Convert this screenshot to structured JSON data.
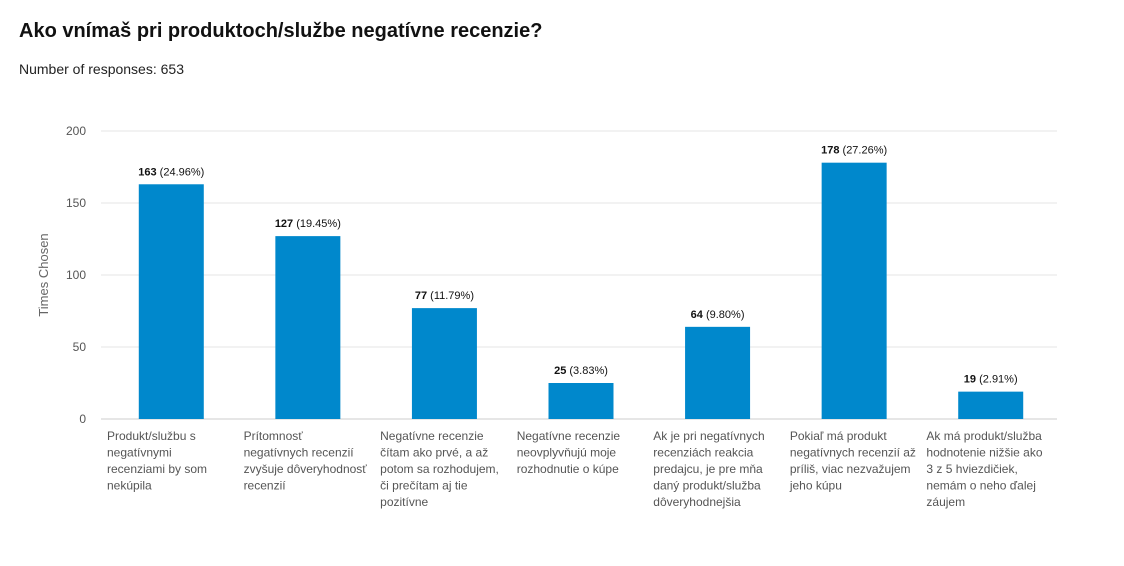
{
  "page": {
    "title": "Ako vnímaš pri produktoch/službe negatívne recenzie?",
    "subtitle": "Number of responses: 653"
  },
  "colors": {
    "bar": "#0088cc",
    "grid": "#e6e6e6",
    "axis": "#cccccc"
  },
  "chart_data": {
    "type": "bar",
    "ylabel": "Times Chosen",
    "ylim": [
      0,
      200
    ],
    "yticks": [
      0,
      50,
      100,
      150,
      200
    ],
    "grid": true,
    "categories": [
      [
        "Produkt/službu s",
        "negatívnymi",
        "recenziami by som",
        "nekúpila"
      ],
      [
        "Prítomnosť",
        "negatívnych recenzií",
        "zvyšuje dôveryhodnosť",
        "recenzií"
      ],
      [
        "Negatívne recenzie",
        "čítam ako prvé, a až",
        "potom sa rozhodujem,",
        "či prečítam aj tie",
        "pozitívne"
      ],
      [
        "Negatívne recenzie",
        "neovplyvňujú moje",
        "rozhodnutie o kúpe"
      ],
      [
        "Ak je pri negatívnych",
        "recenziách reakcia",
        "predajcu, je pre mňa",
        "daný produkt/služba",
        "dôveryhodnejšia"
      ],
      [
        "Pokiaľ má produkt",
        "negatívnych recenzií až",
        "príliš, viac nezvažujem",
        "jeho kúpu"
      ],
      [
        "Ak má produkt/služba",
        "hodnotenie nižšie ako",
        "3 z 5 hviezdičiek,",
        "nemám o neho ďalej",
        "záujem"
      ]
    ],
    "values": [
      163,
      127,
      77,
      25,
      64,
      178,
      19
    ],
    "percent_labels": [
      "(24.96%)",
      "(19.45%)",
      "(11.79%)",
      "(3.83%)",
      "(9.80%)",
      "(27.26%)",
      "(2.91%)"
    ]
  }
}
